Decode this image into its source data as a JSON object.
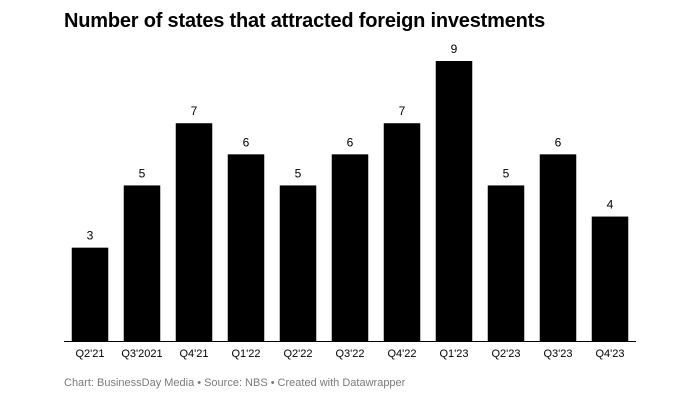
{
  "chart_data": {
    "type": "bar",
    "title": "Number of states that attracted foreign investments",
    "xlabel": "",
    "ylabel": "",
    "categories": [
      "Q2'21",
      "Q3'2021",
      "Q4'21",
      "Q1'22",
      "Q2'22",
      "Q3'22",
      "Q4'22",
      "Q1'23",
      "Q2'23",
      "Q3'23",
      "Q4'23"
    ],
    "values": [
      3,
      5,
      7,
      6,
      5,
      6,
      7,
      9,
      5,
      6,
      4
    ],
    "ylim": [
      0,
      9
    ],
    "grid": false,
    "legend": "none",
    "bar_color": "#000000",
    "value_labels": true
  },
  "footer": {
    "chart_credit": "Chart: BusinessDay Media",
    "source": "Source: NBS",
    "tool": "Created with Datawrapper",
    "separator": "•"
  },
  "colors": {
    "text": "#000000",
    "footer_text": "#7a7a7a",
    "baseline": "#000000"
  }
}
